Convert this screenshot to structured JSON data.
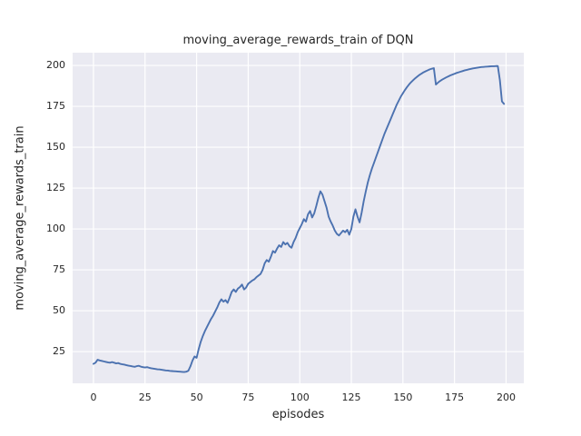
{
  "colors": {
    "figure_background": "#ffffff",
    "axes_background": "#eaeaf2",
    "grid": "#ffffff",
    "text": "#262626",
    "line": "#4c72b0"
  },
  "chart_data": {
    "type": "line",
    "title": "moving_average_rewards_train of DQN",
    "xlabel": "episodes",
    "ylabel": "moving_average_rewards_train",
    "legend": false,
    "grid": true,
    "grid_style": "seaborn-darkgrid",
    "x_ticks": [
      0,
      25,
      50,
      75,
      100,
      125,
      150,
      175,
      200
    ],
    "y_ticks": [
      25,
      50,
      75,
      100,
      125,
      150,
      175,
      200
    ],
    "xlim": [
      -10.1,
      208.6
    ],
    "ylim": [
      5.6,
      207.8
    ],
    "line_color": "#4c72b0",
    "line_width": 1.9,
    "series": [
      {
        "name": "moving_average_rewards_train",
        "points": [
          [
            0,
            17.5
          ],
          [
            1,
            18.2
          ],
          [
            2,
            20
          ],
          [
            3,
            19.6
          ],
          [
            4,
            19.3
          ],
          [
            5,
            19
          ],
          [
            6,
            18.7
          ],
          [
            7,
            18.4
          ],
          [
            8,
            18.2
          ],
          [
            9,
            18.6
          ],
          [
            10,
            18.2
          ],
          [
            11,
            17.8
          ],
          [
            12,
            18
          ],
          [
            13,
            17.5
          ],
          [
            14,
            17.2
          ],
          [
            15,
            17
          ],
          [
            16,
            16.7
          ],
          [
            17,
            16.4
          ],
          [
            18,
            16.2
          ],
          [
            19,
            15.9
          ],
          [
            20,
            15.7
          ],
          [
            21,
            16.1
          ],
          [
            22,
            16.3
          ],
          [
            23,
            15.8
          ],
          [
            24,
            15.5
          ],
          [
            25,
            15.3
          ],
          [
            26,
            15.5
          ],
          [
            27,
            15.1
          ],
          [
            28,
            14.8
          ],
          [
            29,
            14.6
          ],
          [
            30,
            14.4
          ],
          [
            31,
            14.2
          ],
          [
            32,
            14.1
          ],
          [
            33,
            13.9
          ],
          [
            34,
            13.7
          ],
          [
            35,
            13.5
          ],
          [
            36,
            13.4
          ],
          [
            37,
            13.2
          ],
          [
            38,
            13.1
          ],
          [
            39,
            13
          ],
          [
            40,
            12.9
          ],
          [
            41,
            12.8
          ],
          [
            42,
            12.7
          ],
          [
            43,
            12.6
          ],
          [
            44,
            12.5
          ],
          [
            45,
            12.7
          ],
          [
            46,
            13.3
          ],
          [
            47,
            16
          ],
          [
            48,
            19.5
          ],
          [
            49,
            22
          ],
          [
            50,
            21.2
          ],
          [
            51,
            26.5
          ],
          [
            52,
            31
          ],
          [
            53,
            34.5
          ],
          [
            54,
            37.5
          ],
          [
            55,
            40
          ],
          [
            56,
            42.5
          ],
          [
            57,
            45
          ],
          [
            58,
            47
          ],
          [
            59,
            49.5
          ],
          [
            60,
            52
          ],
          [
            61,
            55
          ],
          [
            62,
            57
          ],
          [
            63,
            55.5
          ],
          [
            64,
            56.5
          ],
          [
            65,
            54.8
          ],
          [
            66,
            58
          ],
          [
            67,
            61.5
          ],
          [
            68,
            63
          ],
          [
            69,
            61.5
          ],
          [
            70,
            63.5
          ],
          [
            71,
            64.5
          ],
          [
            72,
            66
          ],
          [
            73,
            63
          ],
          [
            74,
            64.2
          ],
          [
            75,
            66.5
          ],
          [
            76,
            67.5
          ],
          [
            77,
            68.5
          ],
          [
            78,
            69.2
          ],
          [
            79,
            70.5
          ],
          [
            80,
            71.5
          ],
          [
            81,
            72.5
          ],
          [
            82,
            75
          ],
          [
            83,
            79
          ],
          [
            84,
            81
          ],
          [
            85,
            80
          ],
          [
            86,
            83
          ],
          [
            87,
            86.5
          ],
          [
            88,
            85.5
          ],
          [
            89,
            88
          ],
          [
            90,
            90
          ],
          [
            91,
            89
          ],
          [
            92,
            92
          ],
          [
            93,
            90.5
          ],
          [
            94,
            91.5
          ],
          [
            95,
            89.5
          ],
          [
            96,
            88.5
          ],
          [
            97,
            92
          ],
          [
            98,
            94.5
          ],
          [
            99,
            98
          ],
          [
            100,
            100.5
          ],
          [
            101,
            103
          ],
          [
            102,
            106
          ],
          [
            103,
            104.5
          ],
          [
            104,
            109
          ],
          [
            105,
            111
          ],
          [
            106,
            107
          ],
          [
            107,
            109.5
          ],
          [
            108,
            114
          ],
          [
            109,
            119
          ],
          [
            110,
            123
          ],
          [
            111,
            121
          ],
          [
            112,
            117
          ],
          [
            113,
            113
          ],
          [
            114,
            107.5
          ],
          [
            115,
            104.5
          ],
          [
            116,
            102
          ],
          [
            117,
            99
          ],
          [
            118,
            97
          ],
          [
            119,
            96
          ],
          [
            120,
            97.5
          ],
          [
            121,
            99
          ],
          [
            122,
            98
          ],
          [
            123,
            99.5
          ],
          [
            124,
            96.5
          ],
          [
            125,
            100
          ],
          [
            126,
            107.5
          ],
          [
            127,
            112
          ],
          [
            128,
            107.5
          ],
          [
            129,
            104
          ],
          [
            130,
            110
          ],
          [
            131,
            117
          ],
          [
            132,
            123
          ],
          [
            133,
            128.5
          ],
          [
            134,
            133
          ],
          [
            135,
            137
          ],
          [
            136,
            140.5
          ],
          [
            137,
            144
          ],
          [
            138,
            147.5
          ],
          [
            139,
            151
          ],
          [
            140,
            154.5
          ],
          [
            141,
            158
          ],
          [
            142,
            161
          ],
          [
            143,
            164
          ],
          [
            144,
            167
          ],
          [
            145,
            170
          ],
          [
            146,
            173
          ],
          [
            147,
            176
          ],
          [
            148,
            178.5
          ],
          [
            149,
            181
          ],
          [
            150,
            183
          ],
          [
            151,
            185
          ],
          [
            152,
            186.8
          ],
          [
            153,
            188.4
          ],
          [
            154,
            189.8
          ],
          [
            155,
            191
          ],
          [
            156,
            192.2
          ],
          [
            157,
            193.2
          ],
          [
            158,
            194.2
          ],
          [
            159,
            195
          ],
          [
            160,
            195.8
          ],
          [
            161,
            196.4
          ],
          [
            162,
            197
          ],
          [
            163,
            197.6
          ],
          [
            164,
            198
          ],
          [
            165,
            198.3
          ],
          [
            166,
            188.3
          ],
          [
            167,
            189.5
          ],
          [
            168,
            190.5
          ],
          [
            169,
            191.3
          ],
          [
            170,
            192
          ],
          [
            171,
            192.7
          ],
          [
            172,
            193.3
          ],
          [
            173,
            193.9
          ],
          [
            174,
            194.4
          ],
          [
            175,
            194.9
          ],
          [
            176,
            195.4
          ],
          [
            177,
            195.8
          ],
          [
            178,
            196.2
          ],
          [
            179,
            196.6
          ],
          [
            180,
            197
          ],
          [
            181,
            197.3
          ],
          [
            182,
            197.6
          ],
          [
            183,
            197.9
          ],
          [
            184,
            198.2
          ],
          [
            185,
            198.4
          ],
          [
            186,
            198.6
          ],
          [
            187,
            198.8
          ],
          [
            188,
            199
          ],
          [
            189,
            199.1
          ],
          [
            190,
            199.2
          ],
          [
            191,
            199.3
          ],
          [
            192,
            199.4
          ],
          [
            193,
            199.5
          ],
          [
            194,
            199.5
          ],
          [
            195,
            199.6
          ],
          [
            196,
            199.6
          ],
          [
            197,
            191
          ],
          [
            198,
            178
          ],
          [
            199,
            176.5
          ]
        ]
      }
    ]
  }
}
